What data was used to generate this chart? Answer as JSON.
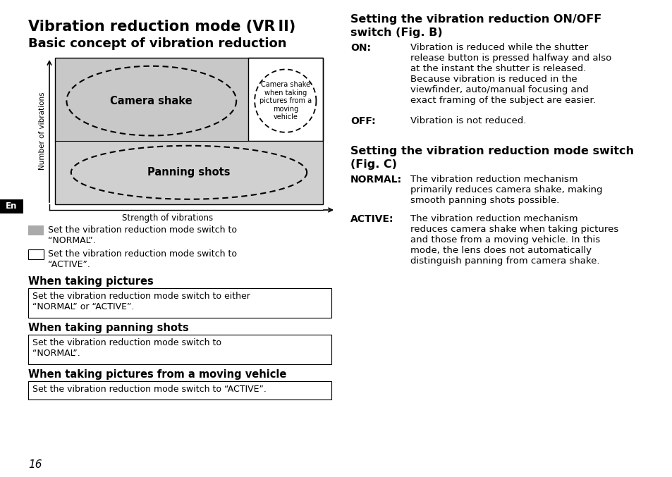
{
  "bg_color": "#ffffff",
  "page_number": "16",
  "title_line1": "Vibration reduction mode (VR II)",
  "title_line2": "Basic concept of vibration reduction",
  "diagram": {
    "gray_color": "#cccccc",
    "lower_gray_color": "#d4d4d4",
    "x_label": "Strength of vibrations",
    "y_label": "Number of vibrations",
    "camera_shake_label": "Camera shake",
    "panning_shots_label": "Panning shots",
    "small_ellipse_label": "Camera shake\nwhen taking\npictures from a\nmoving\nvehicle"
  },
  "legend_normal_text": "Set the vibration reduction mode switch to\n“NORMAL”.",
  "legend_active_text": "Set the vibration reduction mode switch to\n“ACTIVE”.",
  "sections": [
    {
      "heading": "When taking pictures",
      "body": "Set the vibration reduction mode switch to either\n“NORMAL” or “ACTIVE”."
    },
    {
      "heading": "When taking panning shots",
      "body": "Set the vibration reduction mode switch to\n“NORMAL”."
    },
    {
      "heading": "When taking pictures from a moving vehicle",
      "body": "Set the vibration reduction mode switch to “ACTIVE”."
    }
  ],
  "right_title1_line1": "Setting the vibration reduction ON/OFF",
  "right_title1_line2": "switch (Fig. B)",
  "on_label": "ON",
  "on_text": "Vibration is reduced while the shutter\nrelease button is pressed halfway and also\nat the instant the shutter is released.\nBecause vibration is reduced in the\nviewfinder, auto/manual focusing and\nexact framing of the subject are easier.",
  "off_label": "OFF",
  "off_text": "Vibration is not reduced.",
  "right_title2_line1": "Setting the vibration reduction mode switch",
  "right_title2_line2": "(Fig. C)",
  "normal_label": "NORMAL",
  "normal_text": "The vibration reduction mechanism\nprimarily reduces camera shake, making\nsmooth panning shots possible.",
  "active_label": "ACTIVE",
  "active_text": "The vibration reduction mechanism\nreduces camera shake when taking pictures\nand those from a moving vehicle. In this\nmode, the lens does not automatically\ndistinguish panning from camera shake."
}
